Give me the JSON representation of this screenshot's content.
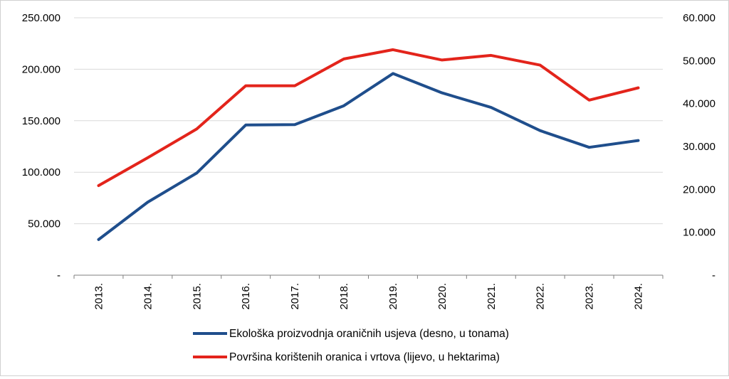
{
  "chart_data": {
    "type": "line",
    "categories": [
      "2013.",
      "2014.",
      "2015.",
      "2016.",
      "2017.",
      "2018.",
      "2019.",
      "2020.",
      "2021.",
      "2022.",
      "2023.",
      "2024."
    ],
    "series": [
      {
        "name": "Ekološka proizvodnja oraničnih usjeva (desno, u tonama)",
        "axis": "right",
        "color": "#1f4e8c",
        "values": [
          8300,
          17000,
          23800,
          35000,
          35100,
          39500,
          47000,
          42500,
          39100,
          33700,
          29800,
          31400
        ]
      },
      {
        "name": "Površina korištenih oranica i vrtova (lijevo, u hektarima)",
        "axis": "left",
        "color": "#e3241b",
        "values": [
          87000,
          114000,
          142000,
          184000,
          184000,
          210000,
          219000,
          209000,
          213500,
          204000,
          170000,
          182000
        ]
      }
    ],
    "left_axis": {
      "ylim": [
        0,
        250000
      ],
      "tick_labels": [
        "-",
        "50.000",
        "100.000",
        "150.000",
        "200.000",
        "250.000"
      ]
    },
    "right_axis": {
      "ylim": [
        0,
        60000
      ],
      "tick_labels": [
        "-",
        "10.000",
        "20.000",
        "30.000",
        "40.000",
        "50.000",
        "60.000"
      ]
    },
    "grid": true,
    "legend_position": "bottom"
  }
}
